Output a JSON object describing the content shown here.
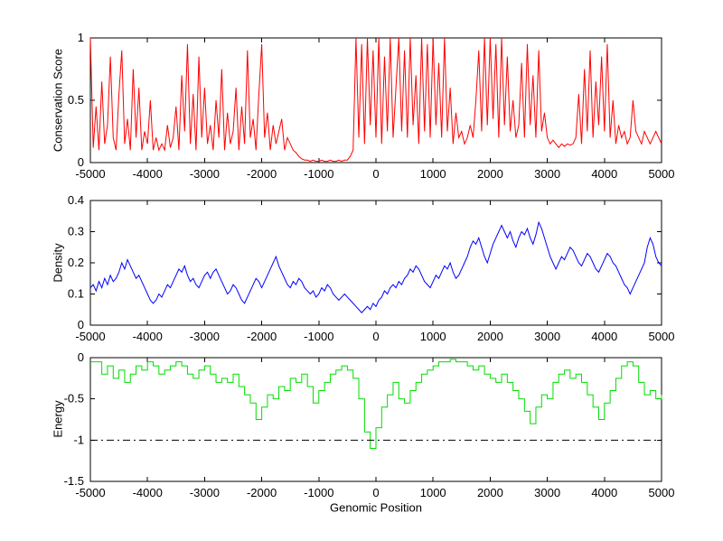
{
  "figure": {
    "background": "#ffffff"
  },
  "chart_data": [
    {
      "type": "line",
      "ylabel": "Conservation Score",
      "xlabel": "",
      "color": "#ff0000",
      "xlim": [
        -5000,
        5000
      ],
      "ylim": [
        0,
        1
      ],
      "xticks": [
        -5000,
        -4000,
        -3000,
        -2000,
        -1000,
        0,
        1000,
        2000,
        3000,
        4000,
        5000
      ],
      "yticks": [
        0,
        0.5,
        1
      ],
      "x_start": -5000,
      "x_step": 50,
      "values": [
        1,
        0.12,
        0.45,
        0.1,
        0.65,
        0.15,
        0.3,
        0.85,
        0.2,
        0.1,
        0.55,
        0.9,
        0.15,
        0.35,
        0.1,
        0.75,
        0.2,
        0.6,
        0.1,
        0.25,
        0.15,
        0.5,
        0.1,
        0.2,
        0.1,
        0.15,
        0.1,
        0.3,
        0.12,
        0.2,
        0.45,
        0.1,
        0.7,
        0.25,
        0.95,
        0.15,
        0.55,
        0.1,
        0.85,
        0.2,
        0.6,
        0.15,
        0.3,
        0.1,
        0.5,
        0.2,
        0.75,
        0.1,
        0.4,
        0.15,
        0.25,
        0.6,
        0.1,
        0.45,
        0.15,
        0.9,
        0.2,
        0.35,
        0.1,
        0.55,
        0.95,
        0.2,
        0.4,
        0.1,
        0.3,
        0.15,
        0.25,
        0.35,
        0.1,
        0.2,
        0.15,
        0.1,
        0.08,
        0.05,
        0.03,
        0.02,
        0.02,
        0.01,
        0.02,
        0.01,
        0.01,
        0.02,
        0.01,
        0.01,
        0.02,
        0.01,
        0.01,
        0.02,
        0.01,
        0.02,
        0.02,
        0.05,
        0.1,
        1,
        0.2,
        0.95,
        0.15,
        1,
        0.3,
        0.9,
        0.2,
        1,
        0.15,
        0.85,
        0.25,
        1,
        0.2,
        0.6,
        1,
        0.25,
        0.9,
        0.2,
        1,
        0.3,
        0.7,
        0.15,
        1,
        0.25,
        0.95,
        0.2,
        1,
        0.3,
        0.8,
        0.2,
        1,
        0.25,
        0.6,
        0.15,
        0.4,
        0.2,
        0.25,
        0.15,
        0.2,
        0.3,
        0.2,
        0.5,
        0.9,
        0.25,
        1,
        0.3,
        1,
        0.35,
        0.95,
        0.2,
        1,
        0.3,
        0.85,
        0.25,
        0.5,
        0.2,
        0.3,
        0.8,
        0.2,
        0.95,
        0.3,
        0.7,
        0.2,
        0.9,
        0.25,
        0.4,
        0.2,
        0.15,
        0.18,
        0.15,
        0.12,
        0.15,
        0.13,
        0.15,
        0.14,
        0.15,
        0.2,
        0.55,
        0.15,
        0.75,
        0.25,
        0.9,
        0.2,
        0.65,
        0.3,
        0.85,
        0.25,
        0.95,
        0.2,
        0.5,
        0.15,
        0.3,
        0.2,
        0.25,
        0.15,
        0.2,
        0.5,
        0.25,
        0.2,
        0.15,
        0.25,
        0.2,
        0.15,
        0.2,
        0.25,
        0.2,
        0.15
      ]
    },
    {
      "type": "line",
      "ylabel": "Density",
      "xlabel": "",
      "color": "#0000ff",
      "xlim": [
        -5000,
        5000
      ],
      "ylim": [
        0,
        0.4
      ],
      "xticks": [
        -5000,
        -4000,
        -3000,
        -2000,
        -1000,
        0,
        1000,
        2000,
        3000,
        4000,
        5000
      ],
      "yticks": [
        0,
        0.1,
        0.2,
        0.3,
        0.4
      ],
      "x_start": -5000,
      "x_step": 50,
      "values": [
        0.12,
        0.13,
        0.11,
        0.14,
        0.12,
        0.15,
        0.13,
        0.16,
        0.14,
        0.15,
        0.17,
        0.2,
        0.18,
        0.21,
        0.19,
        0.17,
        0.15,
        0.16,
        0.14,
        0.12,
        0.1,
        0.08,
        0.07,
        0.08,
        0.1,
        0.09,
        0.11,
        0.13,
        0.12,
        0.14,
        0.16,
        0.18,
        0.17,
        0.19,
        0.16,
        0.14,
        0.15,
        0.13,
        0.12,
        0.14,
        0.16,
        0.17,
        0.15,
        0.17,
        0.18,
        0.16,
        0.14,
        0.12,
        0.1,
        0.11,
        0.13,
        0.12,
        0.1,
        0.08,
        0.07,
        0.09,
        0.11,
        0.13,
        0.15,
        0.14,
        0.12,
        0.14,
        0.16,
        0.18,
        0.2,
        0.22,
        0.19,
        0.17,
        0.15,
        0.13,
        0.12,
        0.14,
        0.13,
        0.15,
        0.14,
        0.12,
        0.11,
        0.1,
        0.11,
        0.09,
        0.1,
        0.12,
        0.11,
        0.13,
        0.12,
        0.1,
        0.09,
        0.08,
        0.09,
        0.1,
        0.09,
        0.08,
        0.07,
        0.06,
        0.05,
        0.04,
        0.05,
        0.06,
        0.05,
        0.07,
        0.06,
        0.08,
        0.09,
        0.11,
        0.1,
        0.12,
        0.13,
        0.12,
        0.14,
        0.13,
        0.15,
        0.16,
        0.18,
        0.17,
        0.19,
        0.18,
        0.16,
        0.14,
        0.13,
        0.12,
        0.14,
        0.16,
        0.15,
        0.17,
        0.19,
        0.18,
        0.2,
        0.17,
        0.15,
        0.16,
        0.18,
        0.2,
        0.22,
        0.25,
        0.27,
        0.26,
        0.28,
        0.25,
        0.22,
        0.2,
        0.23,
        0.26,
        0.28,
        0.3,
        0.32,
        0.3,
        0.28,
        0.3,
        0.27,
        0.25,
        0.28,
        0.3,
        0.29,
        0.31,
        0.28,
        0.26,
        0.29,
        0.33,
        0.31,
        0.28,
        0.25,
        0.22,
        0.2,
        0.18,
        0.2,
        0.22,
        0.21,
        0.23,
        0.25,
        0.24,
        0.22,
        0.2,
        0.19,
        0.21,
        0.23,
        0.22,
        0.2,
        0.18,
        0.17,
        0.19,
        0.21,
        0.23,
        0.22,
        0.2,
        0.19,
        0.17,
        0.15,
        0.13,
        0.12,
        0.1,
        0.12,
        0.14,
        0.16,
        0.18,
        0.2,
        0.25,
        0.28,
        0.26,
        0.22,
        0.2,
        0.19
      ]
    },
    {
      "type": "line",
      "style": "step",
      "ylabel": "Energy",
      "xlabel": "Genomic Position",
      "color": "#00dd00",
      "xlim": [
        -5000,
        5000
      ],
      "ylim": [
        -1.5,
        0
      ],
      "xticks": [
        -5000,
        -4000,
        -3000,
        -2000,
        -1000,
        0,
        1000,
        2000,
        3000,
        4000,
        5000
      ],
      "yticks": [
        -1.5,
        -1,
        -0.5,
        0
      ],
      "x_start": -5000,
      "x_step": 100,
      "threshold": {
        "y": -1,
        "color": "#000000",
        "style": "dash-dot"
      },
      "values": [
        -0.05,
        -0.05,
        -0.2,
        -0.1,
        -0.25,
        -0.15,
        -0.3,
        -0.2,
        -0.1,
        -0.15,
        -0.05,
        -0.1,
        -0.2,
        -0.15,
        -0.1,
        -0.05,
        -0.1,
        -0.2,
        -0.25,
        -0.15,
        -0.1,
        -0.2,
        -0.3,
        -0.25,
        -0.3,
        -0.2,
        -0.35,
        -0.45,
        -0.55,
        -0.75,
        -0.6,
        -0.45,
        -0.5,
        -0.35,
        -0.4,
        -0.25,
        -0.3,
        -0.2,
        -0.35,
        -0.55,
        -0.4,
        -0.3,
        -0.2,
        -0.15,
        -0.1,
        -0.15,
        -0.25,
        -0.5,
        -0.9,
        -1.1,
        -0.85,
        -0.6,
        -0.45,
        -0.3,
        -0.5,
        -0.55,
        -0.4,
        -0.3,
        -0.2,
        -0.15,
        -0.1,
        -0.05,
        -0.05,
        -0.02,
        -0.05,
        -0.05,
        -0.1,
        -0.15,
        -0.1,
        -0.2,
        -0.25,
        -0.3,
        -0.2,
        -0.3,
        -0.4,
        -0.5,
        -0.65,
        -0.8,
        -0.6,
        -0.45,
        -0.5,
        -0.3,
        -0.2,
        -0.15,
        -0.25,
        -0.2,
        -0.3,
        -0.45,
        -0.6,
        -0.75,
        -0.55,
        -0.4,
        -0.25,
        -0.1,
        -0.05,
        -0.1,
        -0.3,
        -0.45,
        -0.4,
        -0.5,
        -0.45
      ]
    }
  ]
}
